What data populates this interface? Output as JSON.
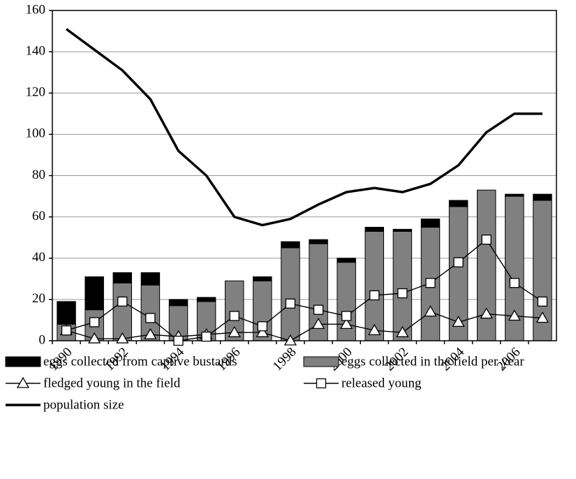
{
  "chart_data": {
    "type": "combo",
    "categories": [
      "1990",
      null,
      "1992",
      null,
      "1994",
      null,
      "1996",
      null,
      "1998",
      null,
      "2000",
      null,
      "2002",
      null,
      "2004",
      null,
      "2006",
      null
    ],
    "ylim": [
      0,
      160
    ],
    "yticks": [
      0,
      20,
      40,
      60,
      80,
      100,
      120,
      140,
      160
    ],
    "grid": true,
    "series": [
      {
        "name": "eggs collected from captive bustards",
        "type": "bar",
        "color": "#000000",
        "values": [
          11,
          16,
          5,
          6,
          3,
          2,
          0,
          2,
          3,
          2,
          2,
          2,
          1,
          4,
          3,
          0,
          1,
          3
        ]
      },
      {
        "name": "eggs collected in the field per year",
        "type": "bar",
        "color": "#808080",
        "values": [
          8,
          15,
          28,
          27,
          17,
          19,
          29,
          29,
          45,
          47,
          38,
          53,
          53,
          55,
          65,
          73,
          70,
          68
        ]
      },
      {
        "name": "fledged young in the field",
        "type": "line",
        "marker": "triangle",
        "color": "#000000",
        "values": [
          5,
          1,
          1,
          3,
          2,
          3,
          4,
          4,
          0,
          8,
          8,
          5,
          4,
          14,
          9,
          13,
          12,
          11
        ]
      },
      {
        "name": "released young",
        "type": "line",
        "marker": "square",
        "color": "#000000",
        "values": [
          5,
          9,
          19,
          11,
          0,
          2,
          12,
          7,
          18,
          15,
          12,
          22,
          23,
          28,
          38,
          49,
          28,
          19
        ]
      },
      {
        "name": "population size",
        "type": "line",
        "marker": "none",
        "color": "#000000",
        "values": [
          151,
          141,
          131,
          117,
          92,
          80,
          60,
          56,
          59,
          66,
          72,
          74,
          72,
          76,
          85,
          101,
          110,
          110
        ]
      }
    ]
  }
}
